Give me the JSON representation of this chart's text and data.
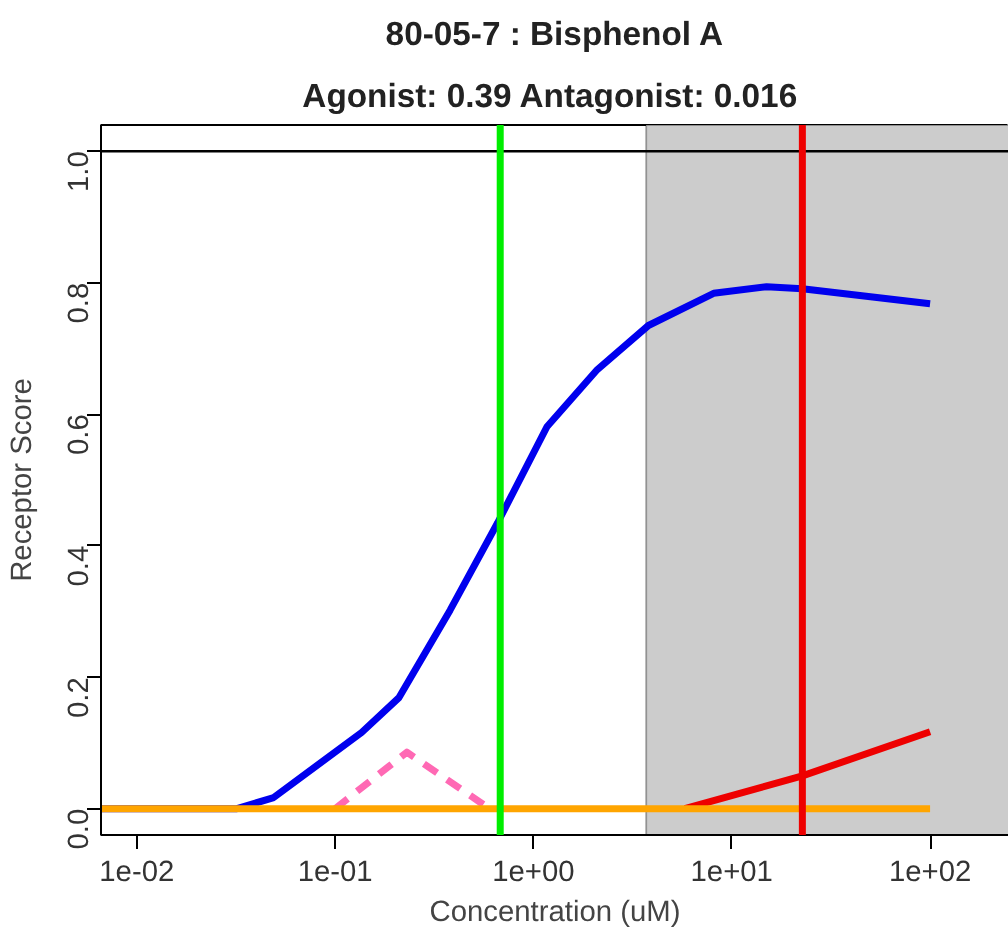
{
  "chart_data": {
    "type": "line",
    "title": "80-05-7 : Bisphenol A",
    "subtitle": "Agonist: 0.39  Antagonist: 0.016",
    "xlabel": "Concentration (uM)",
    "ylabel": "Receptor Score",
    "log": "x",
    "xlim": [
      0.0066,
      250
    ],
    "ylim": [
      -0.04,
      1.04
    ],
    "xticks": [
      {
        "value": 0.01,
        "label": "1e-02"
      },
      {
        "value": 0.1,
        "label": "1e-01"
      },
      {
        "value": 1,
        "label": "1e+00"
      },
      {
        "value": 10,
        "label": "1e+01"
      },
      {
        "value": 100,
        "label": "1e+02"
      }
    ],
    "yticks": [
      {
        "value": 0,
        "label": "0.0"
      },
      {
        "value": 0.2,
        "label": "0.2"
      },
      {
        "value": 0.4,
        "label": "0.4"
      },
      {
        "value": 0.6,
        "label": "0.6"
      },
      {
        "value": 0.8,
        "label": "0.8"
      },
      {
        "value": 1,
        "label": "1.0"
      }
    ],
    "bands": [
      {
        "axis": "x",
        "from": 3.7,
        "to": 250,
        "color": "#cccccc"
      }
    ],
    "ref_lines": [
      {
        "axis": "y",
        "value": 1,
        "color": "#000000"
      },
      {
        "axis": "x",
        "value": 0.68,
        "color": "#00ee00"
      },
      {
        "axis": "x",
        "value": 22.7,
        "color": "#ee0000"
      }
    ],
    "series": [
      {
        "color": "#0000ee",
        "x": [
          0.0066,
          0.032,
          0.049,
          0.136,
          0.21,
          0.38,
          0.66,
          1.17,
          2.1,
          3.8,
          8.1,
          15,
          22.7,
          100
        ],
        "values": [
          0,
          0,
          0.017,
          0.116,
          0.169,
          0.302,
          0.435,
          0.581,
          0.668,
          0.735,
          0.784,
          0.794,
          0.791,
          0.768
        ]
      },
      {
        "color": "#ff69b4",
        "line_style": "dashed",
        "x": [
          0.1,
          0.23,
          0.6
        ],
        "values": [
          0,
          0.086,
          0
        ]
      },
      {
        "color": "#ee0000",
        "x": [
          5.8,
          22.7,
          100
        ],
        "values": [
          0,
          0.05,
          0.117
        ]
      },
      {
        "color": "#ffa500",
        "x": [
          0.0066,
          100
        ],
        "values": [
          0,
          0
        ]
      }
    ]
  }
}
